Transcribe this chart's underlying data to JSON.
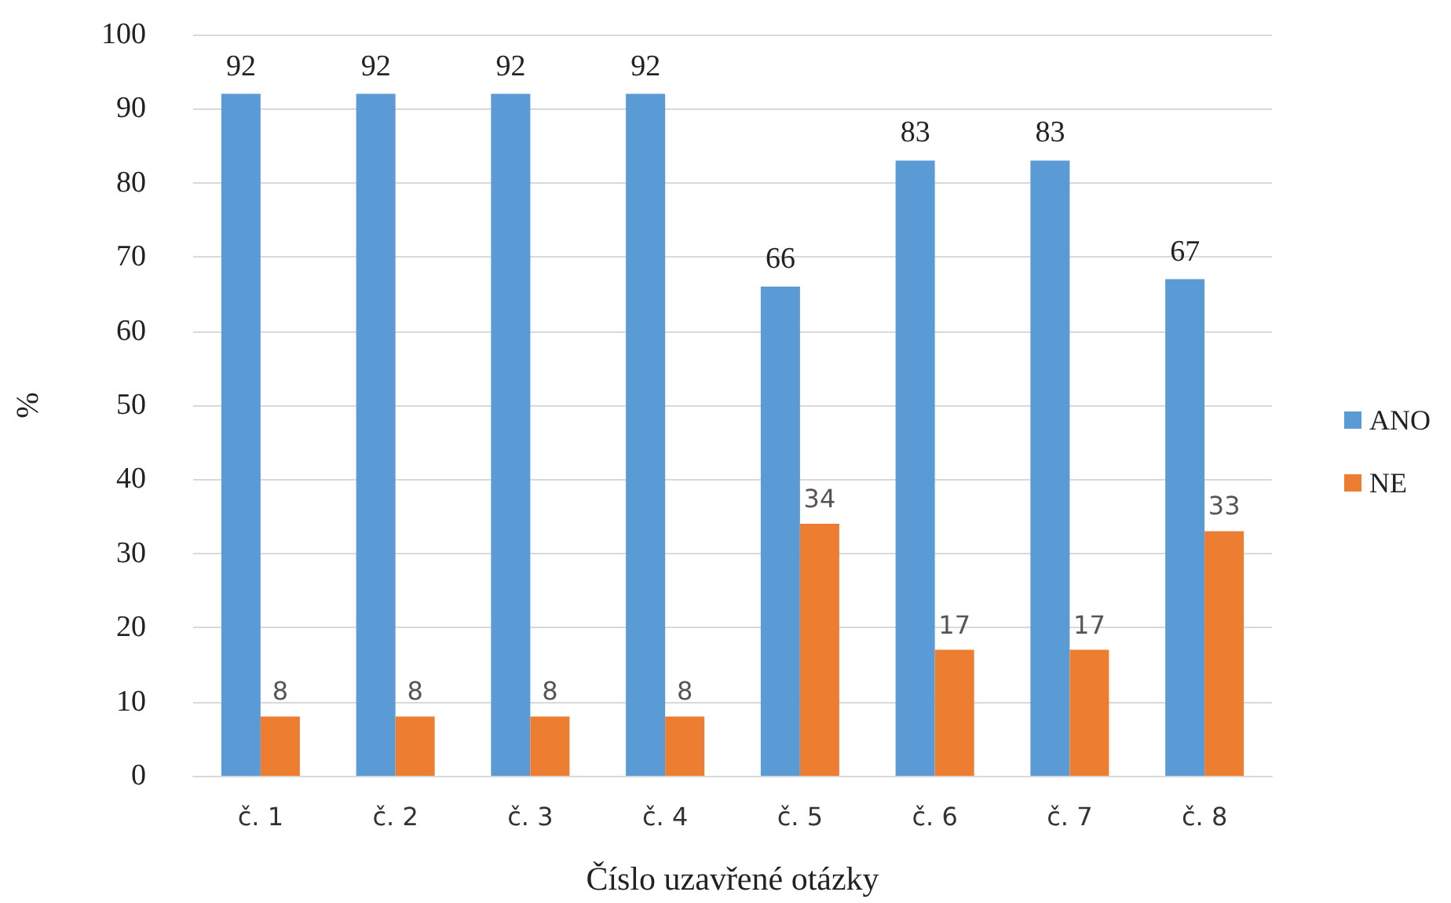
{
  "chart_data": {
    "type": "bar",
    "xlabel": "Číslo uzavřené otázky",
    "ylabel": "%",
    "categories": [
      "č. 1",
      "č. 2",
      "č. 3",
      "č. 4",
      "č. 5",
      "č. 6",
      "č. 7",
      "č. 8"
    ],
    "series": [
      {
        "name": "ANO",
        "color": "#5b9bd5",
        "values": [
          92,
          92,
          92,
          92,
          66,
          83,
          83,
          67
        ]
      },
      {
        "name": "NE",
        "color": "#ed7d31",
        "values": [
          8,
          8,
          8,
          8,
          34,
          17,
          17,
          33
        ]
      }
    ],
    "ylim": [
      0,
      100
    ],
    "yticks": [
      0,
      10,
      20,
      30,
      40,
      50,
      60,
      70,
      80,
      90,
      100
    ],
    "grid": "y",
    "legend": "right",
    "data_labels": true
  }
}
